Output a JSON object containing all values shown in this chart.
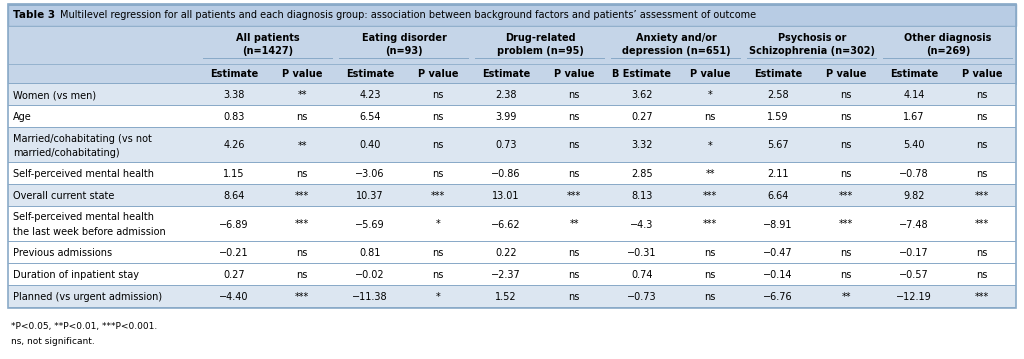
{
  "title_prefix": "Table 3",
  "title_text": "Multilevel regression for all patients and each diagnosis group: association between background factors and patients’ assessment of outcome",
  "group_labels": [
    "All patients\n(n=1427)",
    "Eating disorder\n(n=93)",
    "Drug-related\nproblem (n=95)",
    "Anxiety and/or\ndepression (n=651)",
    "Psychosis or\nSchizophrenia (n=302)",
    "Other diagnosis\n(n=269)"
  ],
  "col_headers": [
    "Estimate",
    "P value",
    "Estimate",
    "P value",
    "Estimate",
    "P value",
    "B Estimate",
    "P value",
    "Estimate",
    "P value",
    "Estimate",
    "P value"
  ],
  "rows": [
    {
      "label": "Women (vs men)",
      "values": [
        "3.38",
        "**",
        "4.23",
        "ns",
        "2.38",
        "ns",
        "3.62",
        "*",
        "2.58",
        "ns",
        "4.14",
        "ns"
      ],
      "shaded": true,
      "multiline": false
    },
    {
      "label": "Age",
      "values": [
        "0.83",
        "ns",
        "6.54",
        "ns",
        "3.99",
        "ns",
        "0.27",
        "ns",
        "1.59",
        "ns",
        "1.67",
        "ns"
      ],
      "shaded": false,
      "multiline": false
    },
    {
      "label": "Married/cohabitating (vs not\nmarried/cohabitating)",
      "values": [
        "4.26",
        "**",
        "0.40",
        "ns",
        "0.73",
        "ns",
        "3.32",
        "*",
        "5.67",
        "ns",
        "5.40",
        "ns"
      ],
      "shaded": true,
      "multiline": true
    },
    {
      "label": "Self-perceived mental health",
      "values": [
        "1.15",
        "ns",
        "−3.06",
        "ns",
        "−0.86",
        "ns",
        "2.85",
        "**",
        "2.11",
        "ns",
        "−0.78",
        "ns"
      ],
      "shaded": false,
      "multiline": false
    },
    {
      "label": "Overall current state",
      "values": [
        "8.64",
        "***",
        "10.37",
        "***",
        "13.01",
        "***",
        "8.13",
        "***",
        "6.64",
        "***",
        "9.82",
        "***"
      ],
      "shaded": true,
      "multiline": false
    },
    {
      "label": "Self-perceived mental health\nthe last week before admission",
      "values": [
        "−6.89",
        "***",
        "−5.69",
        "*",
        "−6.62",
        "**",
        "−4.3",
        "***",
        "−8.91",
        "***",
        "−7.48",
        "***"
      ],
      "shaded": false,
      "multiline": true
    },
    {
      "label": "Previous admissions",
      "values": [
        "−0.21",
        "ns",
        "0.81",
        "ns",
        "0.22",
        "ns",
        "−0.31",
        "ns",
        "−0.47",
        "ns",
        "−0.17",
        "ns"
      ],
      "shaded": false,
      "multiline": false
    },
    {
      "label": "Duration of inpatient stay",
      "values": [
        "0.27",
        "ns",
        "−0.02",
        "ns",
        "−2.37",
        "ns",
        "0.74",
        "ns",
        "−0.14",
        "ns",
        "−0.57",
        "ns"
      ],
      "shaded": false,
      "multiline": false
    },
    {
      "label": "Planned (vs urgent admission)",
      "values": [
        "−4.40",
        "***",
        "−11.38",
        "*",
        "1.52",
        "ns",
        "−0.73",
        "ns",
        "−6.76",
        "**",
        "−12.19",
        "***"
      ],
      "shaded": true,
      "multiline": false
    }
  ],
  "footnotes": [
    "*P<0.05, **P<0.01, ***P<0.001.",
    "ns, not significant."
  ],
  "colors": {
    "title_bg": "#b8cce4",
    "header_bg": "#c5d5e8",
    "shaded_bg": "#dce6f1",
    "white_bg": "#ffffff",
    "border": "#8aaac8",
    "text": "#000000"
  },
  "font_sizes": {
    "title": 7.5,
    "header": 7.0,
    "cell": 7.0,
    "footnote": 6.5
  }
}
